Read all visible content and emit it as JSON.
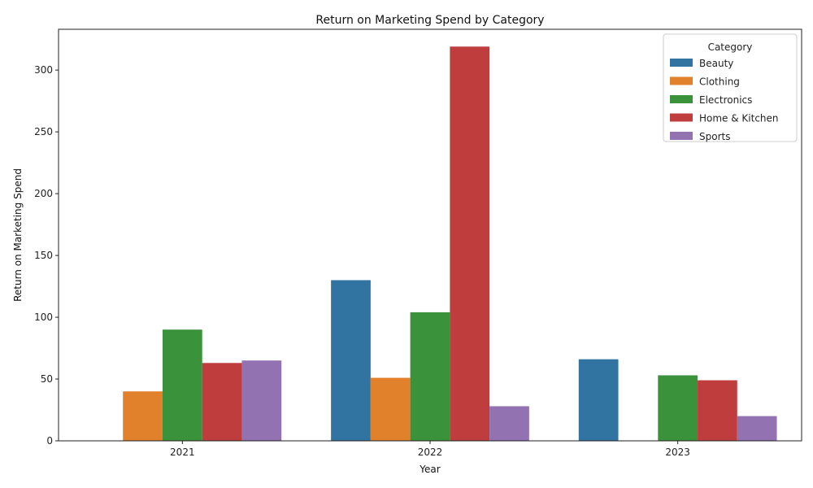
{
  "chart_data": {
    "type": "bar",
    "title": "Return on Marketing Spend by Category",
    "xlabel": "Year",
    "ylabel": "Return on Marketing Spend",
    "categories": [
      "2021",
      "2022",
      "2023"
    ],
    "ylim": [
      0,
      333
    ],
    "yticks": [
      0,
      50,
      100,
      150,
      200,
      250,
      300
    ],
    "grid": false,
    "legend": {
      "title": "Category",
      "position": "top-right"
    },
    "series": [
      {
        "name": "Beauty",
        "color": "#3274a1",
        "values": [
          null,
          130,
          66
        ]
      },
      {
        "name": "Clothing",
        "color": "#e1812c",
        "values": [
          40,
          51,
          null
        ]
      },
      {
        "name": "Electronics",
        "color": "#3a923a",
        "values": [
          90,
          104,
          53
        ]
      },
      {
        "name": "Home & Kitchen",
        "color": "#c03d3e",
        "values": [
          63,
          319,
          49
        ]
      },
      {
        "name": "Sports",
        "color": "#9372b2",
        "values": [
          65,
          28,
          20
        ]
      }
    ]
  }
}
